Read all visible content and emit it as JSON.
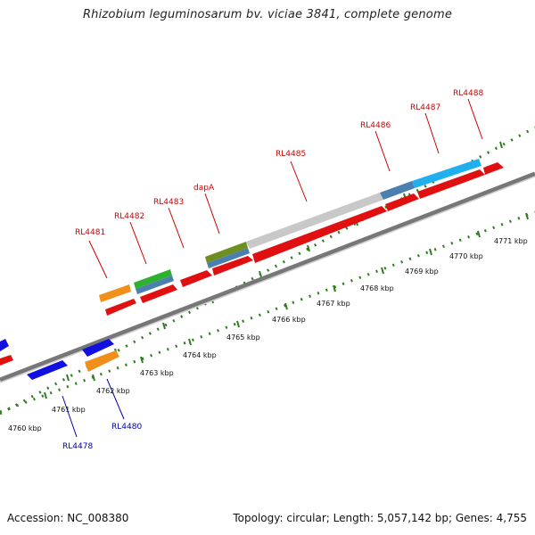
{
  "title": "Rhizobium leguminosarum bv. viciae 3841, complete genome",
  "footer": {
    "accession": "Accession: NC_008380",
    "topology": "Topology: circular; Length: 5,057,142 bp; Genes: 4,755"
  },
  "colors": {
    "forward_label": "#cc0000",
    "reverse_label": "#0000aa",
    "backbone": "#7a7a7a",
    "tick": "#2e7d20"
  },
  "kbp_labels": [
    "4760 kbp",
    "4761 kbp",
    "4762 kbp",
    "4763 kbp",
    "4764 kbp",
    "4765 kbp",
    "4766 kbp",
    "4767 kbp",
    "4768 kbp",
    "4769 kbp",
    "4770 kbp",
    "4771 kbp"
  ],
  "gene_labels": {
    "RL4481": "RL4481",
    "RL4482": "RL4482",
    "RL4483": "RL4483",
    "dapA": "dapA",
    "RL4485": "RL4485",
    "RL4486": "RL4486",
    "RL4487": "RL4487",
    "RL4488": "RL4488",
    "RL4478": "RL4478",
    "RL4480": "RL4480"
  }
}
